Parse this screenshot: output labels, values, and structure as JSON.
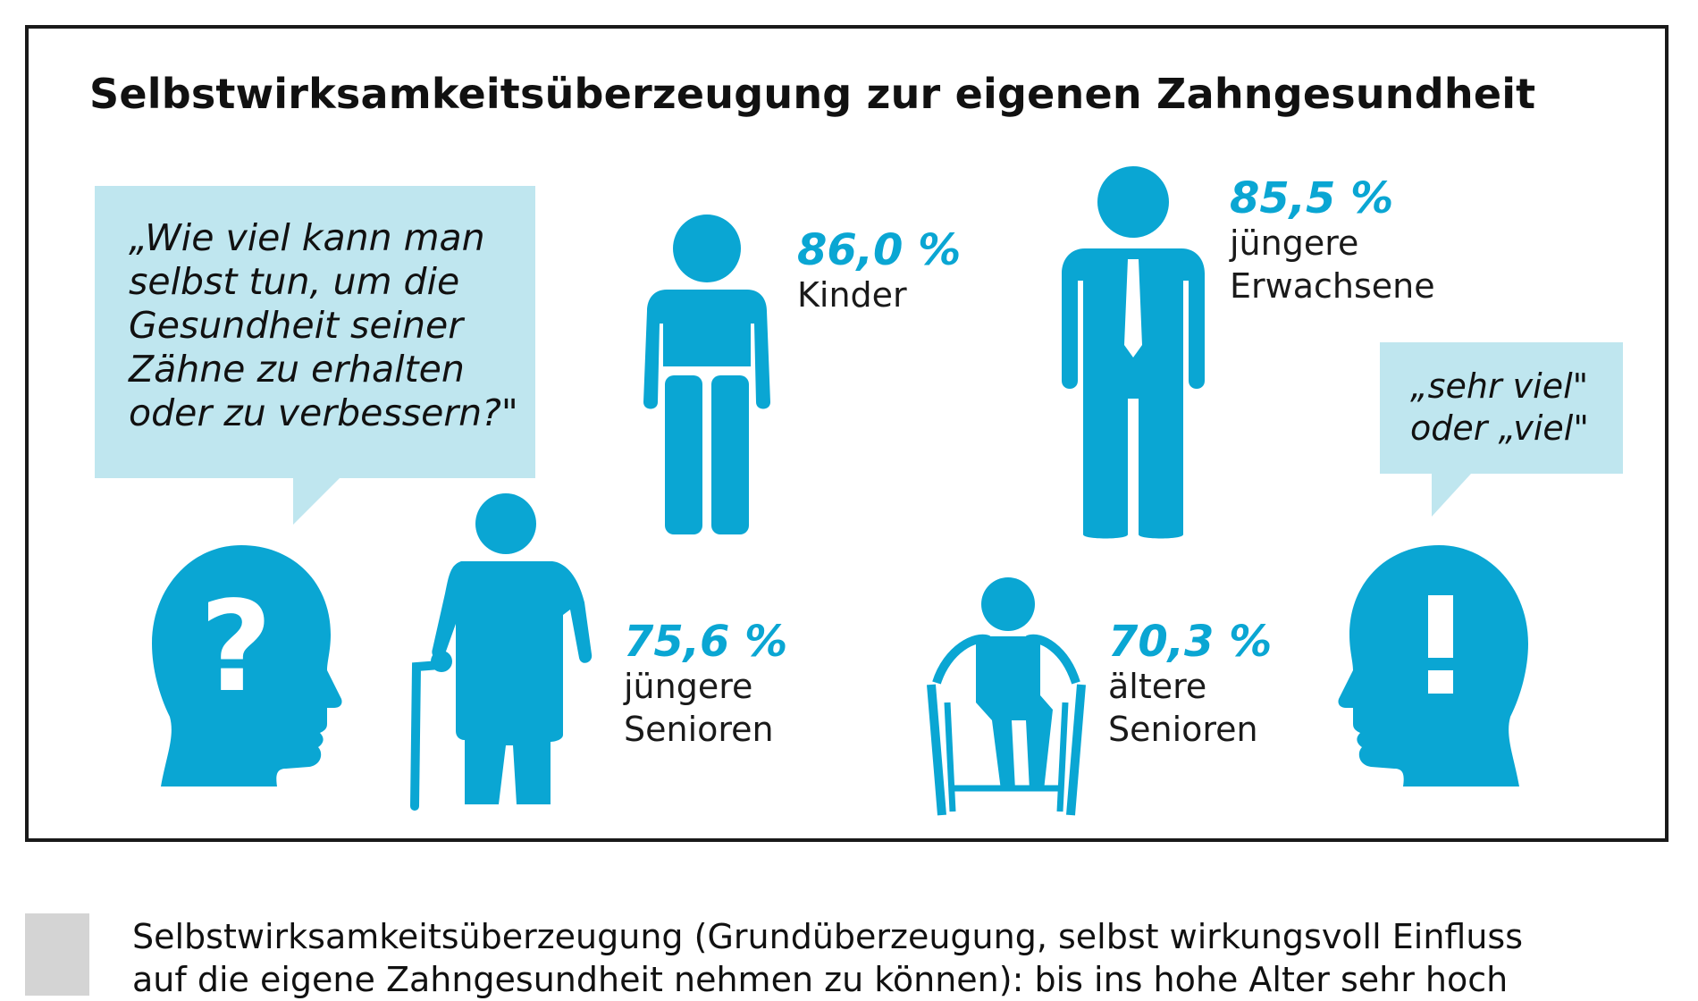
{
  "title": "Selbstwirksamkeitsüberzeugung zur eigenen Zahngesundheit",
  "question_bubble": {
    "text": "„Wie viel kann man\nselbst tun, um die\nGesundheit seiner\nZähne zu erhalten\noder zu verbessern?\""
  },
  "answer_bubble": {
    "text": "„sehr viel\"\noder „viel\""
  },
  "groups": [
    {
      "percent": "86,0 %",
      "label": "Kinder",
      "icon": "child-icon"
    },
    {
      "percent": "85,5 %",
      "label": "jüngere\nErwachsene",
      "icon": "adult-man-tie-icon"
    },
    {
      "percent": "75,6 %",
      "label": "jüngere\nSenioren",
      "icon": "senior-with-cane-icon"
    },
    {
      "percent": "70,3 %",
      "label": "ältere\nSenioren",
      "icon": "person-in-wheelchair-icon"
    }
  ],
  "icons": {
    "question": "head-question-mark-icon",
    "answer": "head-exclamation-mark-icon"
  },
  "legend": {
    "text": "Selbstwirksamkeitsüberzeugung (Grundüberzeugung, selbst wirkungsvoll Einfluss\nauf die eigene Zahngesundheit nehmen zu können): bis ins hohe Alter sehr hoch"
  },
  "colors": {
    "accent": "#0aa6d3",
    "bubble": "#bfe6ef",
    "frame": "#1a1a1a",
    "legend_swatch": "#d4d4d4"
  }
}
